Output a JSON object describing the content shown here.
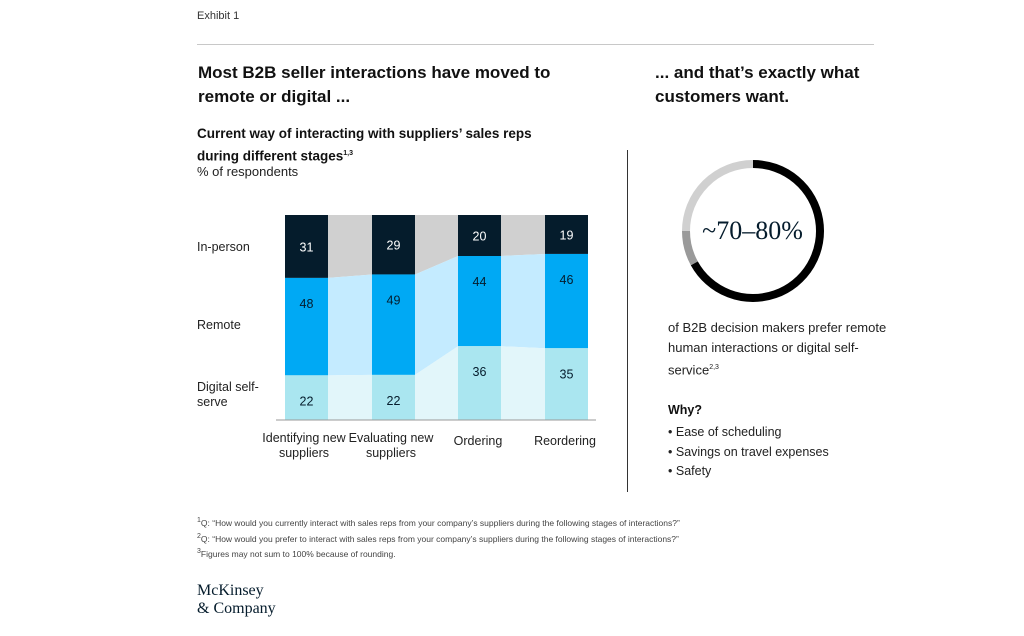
{
  "exhibit_label": "Exhibit 1",
  "headline_left": "Most B2B seller interactions have moved to remote or digital ...",
  "headline_right": "... and that’s exactly what customers want.",
  "subtitle": "Current way of interacting with suppliers’ sales reps during different stages",
  "subtitle_sup": "1,3",
  "units": "% of respondents",
  "colors": {
    "in_person": "#051c2c",
    "remote": "#00a9f4",
    "digital": "#aae6f0",
    "flow_top": "#d0d0d0",
    "flow_mid": "#c4ebff",
    "flow_bottom": "#e2f6fa",
    "ring_main": "#000000",
    "ring_rest": "#d0d0d0",
    "ring_dark_accent": "#9a9a9a"
  },
  "chart_data": {
    "type": "bar",
    "stacked": true,
    "categories": [
      "Identifying new suppliers",
      "Evaluating new suppliers",
      "Ordering",
      "Reordering"
    ],
    "series": [
      {
        "name": "In-person",
        "values": [
          31,
          29,
          20,
          19
        ]
      },
      {
        "name": "Remote",
        "values": [
          48,
          49,
          44,
          46
        ]
      },
      {
        "name": "Digital self-serve",
        "values": [
          22,
          22,
          36,
          35
        ]
      }
    ],
    "row_labels": [
      "In-person",
      "Remote",
      "Digital self-serve"
    ],
    "ylim": [
      0,
      100
    ]
  },
  "ring": {
    "label": "~70–80%",
    "value_fraction": 0.75
  },
  "note": "of B2B decision makers prefer remote human interactions or digital self-service",
  "note_sup": "2,3",
  "why_title": "Why?",
  "why_items": [
    "Ease of scheduling",
    "Savings on travel expenses",
    "Safety"
  ],
  "footnotes": [
    {
      "num": "1",
      "text": "Q: “How would you currently interact with sales reps from your company’s suppliers during the following stages of interactions?”"
    },
    {
      "num": "2",
      "text": "Q: “How would you prefer to interact with sales reps from your company’s suppliers during the following stages of interactions?”"
    },
    {
      "num": "3",
      "text": "Figures may not sum to 100% because of rounding."
    }
  ],
  "logo_line1": "McKinsey",
  "logo_line2": "& Company"
}
